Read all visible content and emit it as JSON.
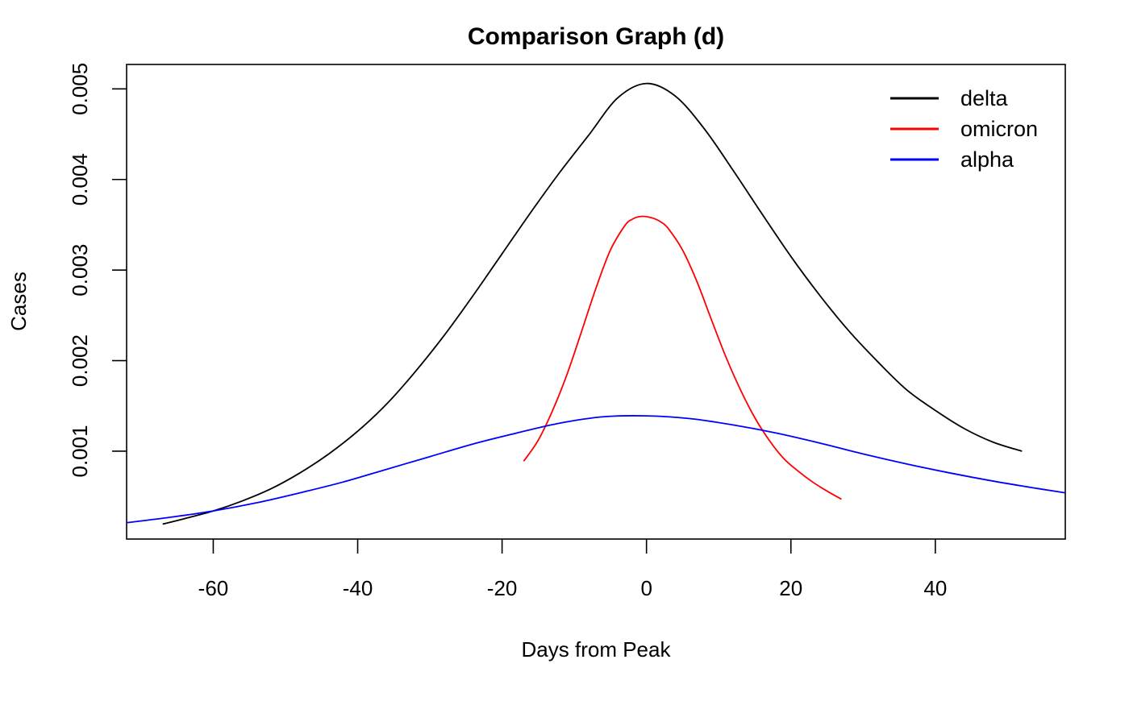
{
  "chart_data": {
    "type": "line",
    "title": "Comparison Graph (d)",
    "xlabel": "Days from Peak",
    "ylabel": "Cases",
    "xlim": [
      -72,
      58
    ],
    "ylim": [
      3e-05,
      0.00527
    ],
    "x_ticks": [
      -60,
      -40,
      -20,
      0,
      20,
      40
    ],
    "x_tick_labels": [
      "-60",
      "-40",
      "-20",
      "0",
      "20",
      "40"
    ],
    "y_ticks": [
      0.001,
      0.002,
      0.003,
      0.004,
      0.005
    ],
    "y_tick_labels": [
      "0.001",
      "0.002",
      "0.003",
      "0.004",
      "0.005"
    ],
    "grid": false,
    "legend_position": "top-right",
    "series": [
      {
        "name": "delta",
        "color": "#000000",
        "x": [
          -67,
          -64,
          -60,
          -56,
          -52,
          -48,
          -44,
          -40,
          -36,
          -32,
          -28,
          -24,
          -20,
          -16,
          -12,
          -8,
          -4,
          0,
          4,
          8,
          12,
          16,
          20,
          24,
          28,
          32,
          36,
          40,
          44,
          48,
          52
        ],
        "y": [
          0.000195,
          0.000255,
          0.00034,
          0.00045,
          0.000585,
          0.00076,
          0.00097,
          0.00122,
          0.00152,
          0.00188,
          0.00228,
          0.00272,
          0.00318,
          0.00364,
          0.00408,
          0.00449,
          0.0049,
          0.00506,
          0.00492,
          0.00456,
          0.0041,
          0.00362,
          0.00315,
          0.00272,
          0.00233,
          0.00199,
          0.00168,
          0.00145,
          0.00125,
          0.0011,
          0.001
        ]
      },
      {
        "name": "omicron",
        "color": "#ff0000",
        "x": [
          -17,
          -15,
          -13,
          -11,
          -9,
          -7,
          -5,
          -3,
          -2,
          -1,
          0,
          1,
          2,
          3,
          5,
          7,
          9,
          11,
          13,
          15,
          17,
          19,
          21,
          23,
          25,
          27
        ],
        "y": [
          0.00089,
          0.00112,
          0.00145,
          0.00185,
          0.00232,
          0.0028,
          0.00322,
          0.00349,
          0.00356,
          0.00359,
          0.00359,
          0.00357,
          0.00353,
          0.00346,
          0.00322,
          0.00287,
          0.00245,
          0.00204,
          0.00168,
          0.00137,
          0.00112,
          0.00092,
          0.00078,
          0.00066,
          0.00056,
          0.00047
        ]
      },
      {
        "name": "alpha",
        "color": "#0000ff",
        "x": [
          -72,
          -66,
          -60,
          -54,
          -48,
          -42,
          -36,
          -30,
          -24,
          -18,
          -12,
          -6,
          0,
          6,
          12,
          18,
          24,
          30,
          36,
          42,
          48,
          54,
          58
        ],
        "y": [
          0.00021,
          0.00027,
          0.00034,
          0.00043,
          0.00054,
          0.00066,
          0.0008,
          0.00094,
          0.00108,
          0.0012,
          0.00131,
          0.00138,
          0.00139,
          0.00136,
          0.00129,
          0.0012,
          0.00109,
          0.00097,
          0.00086,
          0.00076,
          0.00067,
          0.00059,
          0.00054
        ]
      }
    ]
  }
}
